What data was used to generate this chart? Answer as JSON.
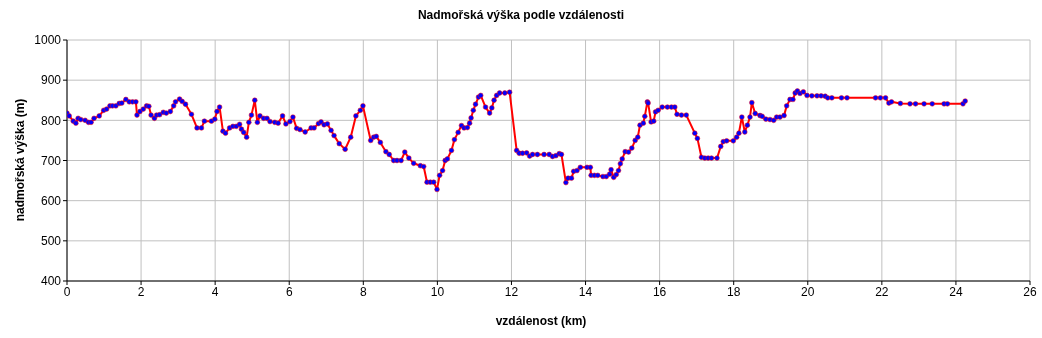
{
  "chart_data": {
    "type": "line",
    "title": "Nadmořská výška podle vzdálenosti",
    "xlabel": "vzdálenost (km)",
    "ylabel": "nadmořská výška (m)",
    "x": [
      0,
      0.06,
      0.17,
      0.24,
      0.3,
      0.37,
      0.49,
      0.58,
      0.65,
      0.73,
      0.87,
      0.99,
      1.07,
      1.16,
      1.23,
      1.32,
      1.41,
      1.48,
      1.59,
      1.68,
      1.77,
      1.86,
      1.89,
      1.97,
      2.06,
      2.15,
      2.21,
      2.27,
      2.36,
      2.42,
      2.5,
      2.6,
      2.68,
      2.79,
      2.88,
      2.93,
      3.04,
      3.11,
      3.2,
      3.36,
      3.51,
      3.63,
      3.71,
      3.9,
      3.99,
      4.05,
      4.12,
      4.21,
      4.28,
      4.39,
      4.48,
      4.57,
      4.66,
      4.71,
      4.77,
      4.85,
      4.91,
      4.98,
      5.07,
      5.14,
      5.21,
      5.31,
      5.4,
      5.48,
      5.61,
      5.7,
      5.82,
      5.91,
      6.02,
      6.1,
      6.2,
      6.29,
      6.43,
      6.59,
      6.67,
      6.79,
      6.86,
      6.94,
      7.03,
      7.13,
      7.21,
      7.35,
      7.51,
      7.66,
      7.8,
      7.92,
      7.99,
      8.2,
      8.28,
      8.35,
      8.46,
      8.61,
      8.7,
      8.82,
      8.91,
      9.02,
      9.12,
      9.23,
      9.36,
      9.54,
      9.63,
      9.72,
      9.81,
      9.9,
      9.99,
      10.06,
      10.14,
      10.21,
      10.27,
      10.38,
      10.46,
      10.56,
      10.65,
      10.72,
      10.81,
      10.87,
      10.91,
      10.97,
      11.03,
      11.11,
      11.17,
      11.3,
      11.41,
      11.47,
      11.53,
      11.6,
      11.68,
      11.82,
      11.95,
      12.14,
      12.21,
      12.3,
      12.41,
      12.49,
      12.57,
      12.7,
      12.88,
      13.02,
      13.11,
      13.2,
      13.29,
      13.35,
      13.47,
      13.53,
      13.62,
      13.68,
      13.77,
      13.86,
      14.04,
      14.13,
      14.15,
      14.24,
      14.33,
      14.47,
      14.56,
      14.65,
      14.69,
      14.76,
      14.83,
      14.89,
      14.94,
      14.99,
      15.07,
      15.16,
      15.25,
      15.34,
      15.41,
      15.47,
      15.56,
      15.6,
      15.67,
      15.69,
      15.77,
      15.84,
      15.89,
      15.96,
      16.07,
      16.21,
      16.32,
      16.41,
      16.47,
      16.59,
      16.72,
      16.95,
      17.02,
      17.13,
      17.22,
      17.31,
      17.4,
      17.55,
      17.65,
      17.72,
      17.81,
      17.99,
      18.08,
      18.14,
      18.22,
      18.3,
      18.37,
      18.44,
      18.49,
      18.58,
      18.71,
      18.77,
      18.87,
      18.98,
      19.08,
      19.16,
      19.25,
      19.36,
      19.43,
      19.52,
      19.6,
      19.66,
      19.72,
      19.79,
      19.88,
      19.98,
      20.11,
      20.25,
      20.36,
      20.47,
      20.54,
      20.65,
      20.91,
      21.06,
      21.83,
      21.96,
      22.1,
      22.19,
      22.26,
      22.5,
      22.76,
      22.91,
      23.14,
      23.36,
      23.68,
      23.77,
      24.19,
      24.25
    ],
    "series": [
      {
        "color": "#ff0000",
        "colors": [
          "#0000ff",
          "#0000ff",
          "#0000ff",
          "#0000ff",
          "#0000ff",
          "#0000ff",
          "#0000ff",
          "#0000ff",
          "#0000ff",
          "#0000ff",
          "#0000ff",
          "#0000ff",
          "#0000ff",
          "#0000ff",
          "#0000ff",
          "#0000ff",
          "#0000ff",
          "#0000ff",
          "#0000ff",
          "#0000ff",
          "#0000ff",
          "#0000ff",
          "#0000ff",
          "#0000ff",
          "#0000ff",
          "#0000ff",
          "#0000ff",
          "#0000ff",
          "#0000ff",
          "#0000ff",
          "#0000ff",
          "#0000ff",
          "#0000ff",
          "#0000ff",
          "#0000ff",
          "#0000ff",
          "#0000ff",
          "#0000ff",
          "#0000ff",
          "#0000ff",
          "#0000ff",
          "#0000ff",
          "#0000ff",
          "#0000ff",
          "#0000ff",
          "#0000ff",
          "#0000ff",
          "#0000ff",
          "#0000ff",
          "#0000ff",
          "#0000ff",
          "#0000ff",
          "#0000ff",
          "#0000ff",
          "#0000ff",
          "#0000ff",
          "#0000ff",
          "#0000ff",
          "#0000ff",
          "#0000ff",
          "#0000ff",
          "#0000ff",
          "#0000ff",
          "#0000ff",
          "#0000ff",
          "#0000ff",
          "#0000ff",
          "#0000ff",
          "#0000ff",
          "#0000ff",
          "#0000ff",
          "#0000ff",
          "#0000ff",
          "#0000ff",
          "#0000ff",
          "#0000ff",
          "#0000ff",
          "#0000ff",
          "#0000ff",
          "#0000ff",
          "#0000ff",
          "#0000ff",
          "#0000ff",
          "#0000ff",
          "#0000ff",
          "#0000ff",
          "#0000ff",
          "#0000ff",
          "#0000ff",
          "#0000ff",
          "#0000ff",
          "#0000ff",
          "#0000ff",
          "#0000ff",
          "#0000ff",
          "#0000ff",
          "#0000ff",
          "#0000ff",
          "#0000ff",
          "#0000ff",
          "#0000ff",
          "#0000ff",
          "#0000ff",
          "#0000ff",
          "#0000ff",
          "#0000ff",
          "#0000ff",
          "#0000ff",
          "#0000ff",
          "#0000ff",
          "#0000ff",
          "#0000ff",
          "#0000ff",
          "#0000ff",
          "#0000ff",
          "#0000ff",
          "#0000ff",
          "#0000ff",
          "#0000ff",
          "#0000ff",
          "#0000ff",
          "#0000ff",
          "#0000ff",
          "#0000ff",
          "#0000ff",
          "#0000ff",
          "#0000ff",
          "#0000ff",
          "#0000ff",
          "#0000ff",
          "#0000ff",
          "#0000ff",
          "#0000ff",
          "#0000ff",
          "#0000ff",
          "#0000ff",
          "#0000ff",
          "#0000ff",
          "#0000ff",
          "#0000ff",
          "#0000ff",
          "#0000ff",
          "#0000ff",
          "#0000ff",
          "#0000ff",
          "#0000ff",
          "#0000ff",
          "#0000ff",
          "#0000ff",
          "#0000ff",
          "#0000ff",
          "#0000ff",
          "#0000ff",
          "#0000ff",
          "#0000ff",
          "#0000ff",
          "#0000ff",
          "#0000ff",
          "#0000ff",
          "#0000ff",
          "#0000ff",
          "#0000ff",
          "#0000ff",
          "#0000ff",
          "#0000ff",
          "#0000ff",
          "#0000ff",
          "#0000ff",
          "#0000ff",
          "#0000ff",
          "#0000ff",
          "#0000ff",
          "#0000ff",
          "#0000ff",
          "#0000ff",
          "#0000ff",
          "#0000ff",
          "#0000ff",
          "#0000ff",
          "#0000ff",
          "#0000ff",
          "#0000ff",
          "#0000ff",
          "#0000ff",
          "#0000ff",
          "#0000ff",
          "#0000ff",
          "#0000ff",
          "#0000ff",
          "#0000ff",
          "#0000ff",
          "#0000ff",
          "#0000ff",
          "#0000ff",
          "#0000ff",
          "#0000ff",
          "#0000ff",
          "#0000ff",
          "#0000ff",
          "#0000ff",
          "#0000ff",
          "#0000ff",
          "#0000ff",
          "#0000ff",
          "#0000ff",
          "#0000ff",
          "#0000ff",
          "#0000ff",
          "#0000ff",
          "#0000ff",
          "#0000ff",
          "#0000ff",
          "#0000ff",
          "#0000ff",
          "#0000ff",
          "#0000ff",
          "#0000ff",
          "#0000ff",
          "#0000ff",
          "#0000ff",
          "#0000ff",
          "#0000ff",
          "#0000ff",
          "#0000ff",
          "#0000ff",
          "#0000ff",
          "#0000ff",
          "#0000ff",
          "#0000ff",
          "#0000ff",
          "#0000ff",
          "#0000ff",
          "#0000ff",
          "#0000ff",
          "#0000ff",
          "#0000ff",
          "#0000ff",
          "#0000ff",
          "#0000ff",
          "#0000ff"
        ],
        "values": [
          818,
          811,
          798,
          793,
          805,
          802,
          800,
          795,
          795,
          805,
          811,
          825,
          828,
          836,
          836,
          836,
          842,
          843,
          852,
          846,
          846,
          846,
          813,
          822,
          828,
          836,
          835,
          813,
          805,
          813,
          814,
          820,
          818,
          822,
          836,
          846,
          853,
          847,
          840,
          815,
          781,
          781,
          798,
          798,
          803,
          822,
          833,
          773,
          768,
          781,
          785,
          785,
          790,
          778,
          770,
          758,
          795,
          813,
          850,
          795,
          811,
          805,
          805,
          797,
          795,
          793,
          811,
          791,
          797,
          808,
          780,
          777,
          771,
          781,
          781,
          792,
          796,
          789,
          791,
          775,
          762,
          742,
          728,
          758,
          811,
          825,
          836,
          750,
          758,
          760,
          745,
          722,
          715,
          700,
          700,
          700,
          721,
          706,
          693,
          687,
          685,
          646,
          646,
          646,
          628,
          663,
          675,
          700,
          704,
          725,
          752,
          770,
          787,
          781,
          782,
          793,
          806,
          825,
          840,
          858,
          862,
          833,
          818,
          831,
          850,
          862,
          868,
          868,
          870,
          725,
          718,
          718,
          719,
          711,
          715,
          715,
          715,
          715,
          710,
          712,
          717,
          715,
          645,
          656,
          656,
          673,
          675,
          683,
          683,
          683,
          663,
          663,
          663,
          660,
          660,
          666,
          677,
          658,
          665,
          675,
          692,
          704,
          722,
          721,
          731,
          750,
          758,
          788,
          793,
          810,
          846,
          843,
          796,
          798,
          821,
          825,
          833,
          833,
          833,
          833,
          815,
          813,
          813,
          768,
          755,
          708,
          706,
          706,
          706,
          706,
          735,
          747,
          749,
          749,
          758,
          768,
          808,
          771,
          788,
          808,
          844,
          817,
          812,
          810,
          803,
          802,
          800,
          808,
          808,
          812,
          836,
          852,
          852,
          868,
          873,
          867,
          871,
          862,
          861,
          861,
          861,
          860,
          856,
          856,
          856,
          856,
          856,
          856,
          856,
          843,
          846,
          842,
          841,
          841,
          841,
          841,
          841,
          841,
          841,
          848
        ]
      }
    ],
    "marker": "circle",
    "line_style": "solid",
    "xlim": [
      0,
      26
    ],
    "xticks": [
      0,
      2,
      4,
      6,
      8,
      10,
      12,
      14,
      16,
      18,
      20,
      22,
      24,
      26
    ],
    "ylim": [
      400,
      1000
    ],
    "yticks": [
      400,
      500,
      600,
      700,
      800,
      900,
      1000
    ],
    "grid": true
  }
}
